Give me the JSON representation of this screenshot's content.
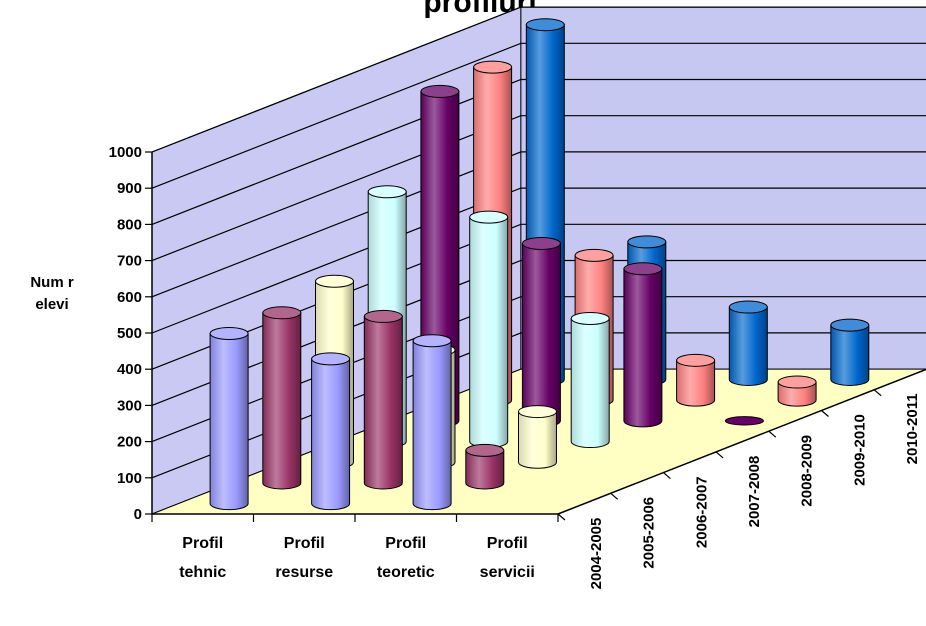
{
  "chart_data": {
    "type": "bar",
    "subtype": "3d-cylinder",
    "title": "profiluri",
    "ylabel": "Num r elevi",
    "ylabel_lines": [
      "Num r",
      "elevi"
    ],
    "ylim": [
      0,
      1000
    ],
    "yticks": [
      0,
      100,
      200,
      300,
      400,
      500,
      600,
      700,
      800,
      900,
      1000
    ],
    "categories": [
      {
        "line1": "Profil",
        "line2": "tehnic"
      },
      {
        "line1": "Profil",
        "line2": "resurse"
      },
      {
        "line1": "Profil",
        "line2": "teoretic"
      },
      {
        "line1": "Profil",
        "line2": "servicii"
      }
    ],
    "grid": true,
    "series": [
      {
        "name": "2004-2005",
        "color": "#9999ff",
        "values": [
          470,
          400,
          450,
          0
        ]
      },
      {
        "name": "2005-2006",
        "color": "#993366",
        "values": [
          470,
          460,
          90,
          0
        ]
      },
      {
        "name": "2006-2007",
        "color": "#ffffcc",
        "values": [
          500,
          310,
          140,
          0
        ]
      },
      {
        "name": "2007-2008",
        "color": "#ccffff",
        "values": [
          690,
          620,
          340,
          0
        ]
      },
      {
        "name": "2008-2009",
        "color": "#660066",
        "values": [
          910,
          490,
          420,
          5
        ]
      },
      {
        "name": "2009-2010",
        "color": "#ff8080",
        "values": [
          920,
          400,
          110,
          50
        ]
      },
      {
        "name": "2010-2011",
        "color": "#0066cc",
        "values": [
          980,
          380,
          200,
          150
        ]
      }
    ]
  }
}
